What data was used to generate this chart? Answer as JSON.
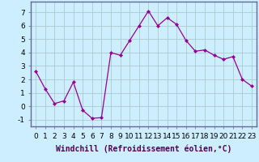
{
  "x": [
    0,
    1,
    2,
    3,
    4,
    5,
    6,
    7,
    8,
    9,
    10,
    11,
    12,
    13,
    14,
    15,
    16,
    17,
    18,
    19,
    20,
    21,
    22,
    23
  ],
  "y": [
    2.6,
    1.3,
    0.2,
    0.4,
    1.8,
    -0.3,
    -0.9,
    -0.85,
    4.0,
    3.8,
    4.9,
    6.0,
    7.1,
    6.0,
    6.6,
    6.1,
    4.9,
    4.1,
    4.2,
    3.8,
    3.5,
    3.7,
    2.0,
    1.5
  ],
  "line_color": "#990099",
  "marker": "D",
  "marker_size": 2,
  "bg_color": "#cceeff",
  "grid_color": "#aacccc",
  "xlabel": "Windchill (Refroidissement éolien,°C)",
  "xlabel_fontsize": 7,
  "tick_fontsize": 6.5,
  "ylim": [
    -1.5,
    7.8
  ],
  "yticks": [
    -1,
    0,
    1,
    2,
    3,
    4,
    5,
    6,
    7
  ],
  "xlim": [
    -0.5,
    23.5
  ],
  "xticks": [
    0,
    1,
    2,
    3,
    4,
    5,
    6,
    7,
    8,
    9,
    10,
    11,
    12,
    13,
    14,
    15,
    16,
    17,
    18,
    19,
    20,
    21,
    22,
    23
  ],
  "spine_color": "#666699"
}
